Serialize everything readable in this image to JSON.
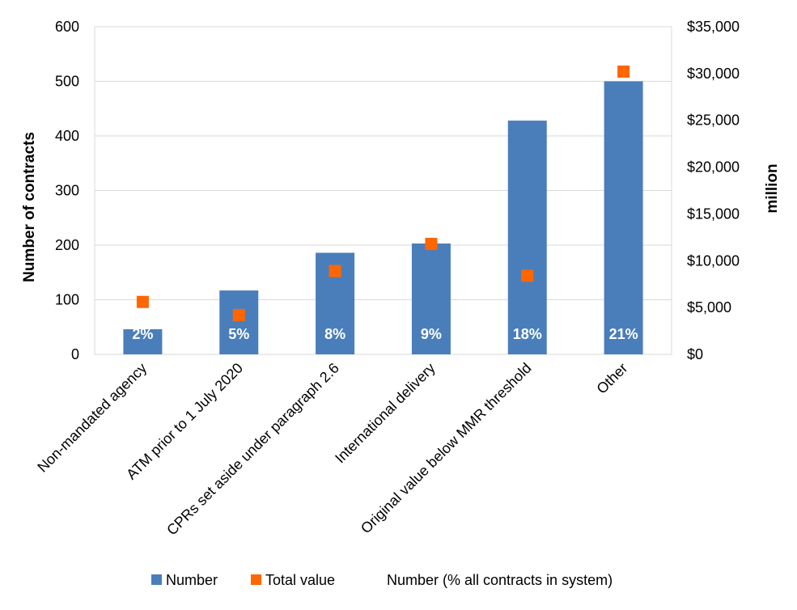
{
  "chart_data": {
    "type": "bar",
    "categories": [
      "Non-mandated agency",
      "ATM prior to 1 July 2020",
      "CPRs set aside under paragraph 2.6",
      "International delivery",
      "Original value below MMR threshold",
      "Other"
    ],
    "series": [
      {
        "name": "Number",
        "type": "bar",
        "axis": "left",
        "color": "#4a7ebb",
        "values": [
          46,
          117,
          186,
          203,
          428,
          500
        ]
      },
      {
        "name": "Total value",
        "type": "scatter",
        "axis": "right",
        "color": "#ff6600",
        "values": [
          5600,
          4200,
          8900,
          11800,
          8400,
          30200
        ]
      }
    ],
    "bar_labels": [
      "2%",
      "5%",
      "8%",
      "9%",
      "18%",
      "21%"
    ],
    "legend_note": "Number (% all contracts in system)",
    "ylabel": "Number of contracts",
    "y2label": "million",
    "ylim": [
      0,
      600
    ],
    "y2lim": [
      0,
      35000
    ],
    "yticks": [
      "0",
      "100",
      "200",
      "300",
      "400",
      "500",
      "600"
    ],
    "y2ticks": [
      "$0",
      "$5,000",
      "$10,000",
      "$15,000",
      "$20,000",
      "$25,000",
      "$30,000",
      "$35,000"
    ],
    "grid": true,
    "legend_position": "bottom"
  }
}
